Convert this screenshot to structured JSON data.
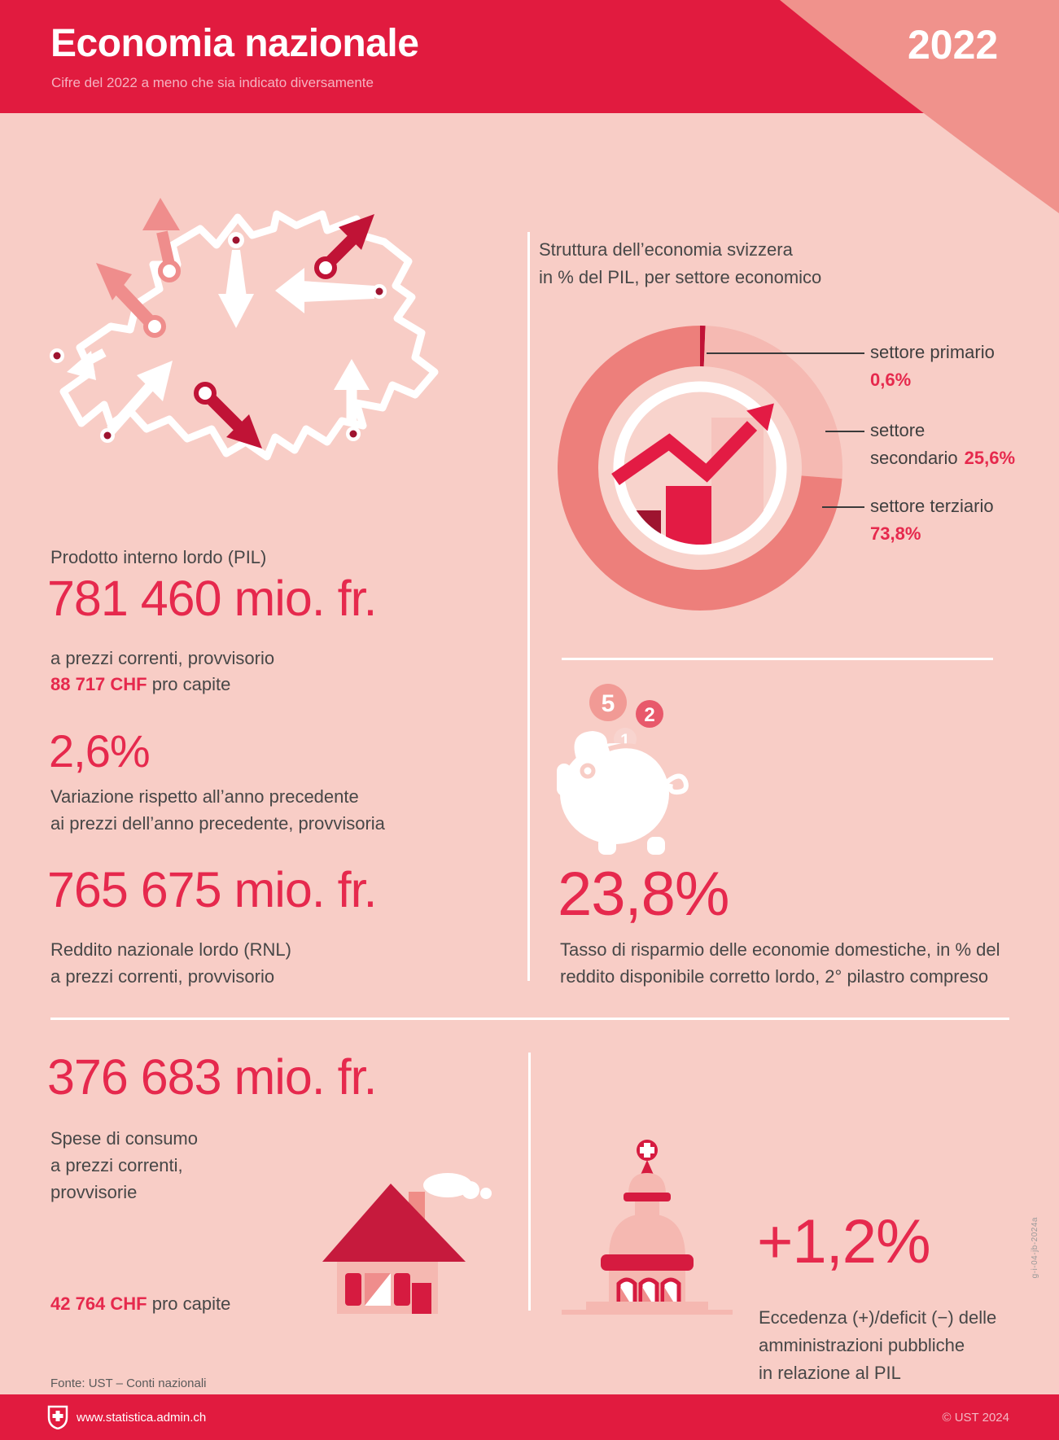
{
  "colors": {
    "header_red": "#e11b3f",
    "accent_red": "#e6294d",
    "dark_red": "#c01336",
    "rose": "#ed7f7b",
    "light_pink": "#f5b9b2",
    "salmon": "#f0928c",
    "background": "#f8cdc6",
    "text_dark": "#474747",
    "white": "#ffffff"
  },
  "header": {
    "title": "Economia nazionale",
    "subtitle": "Cifre del 2022 a meno che sia indicato diversamente",
    "year": "2022"
  },
  "structure": {
    "title_line1": "Struttura dell’economia svizzera",
    "title_line2": "in % del PIL, per settore economico"
  },
  "chart_data": {
    "type": "pie",
    "donut": true,
    "title": "Struttura dell’economia svizzera in % del PIL, per settore economico",
    "unit": "% del PIL",
    "legend_position": "right",
    "slices": [
      {
        "label": "settore primario",
        "value": 0.6,
        "display": "0,6%",
        "color": "#c01336"
      },
      {
        "label": "settore secondario",
        "label_line1": "settore",
        "label_line2": "secondario",
        "value": 25.6,
        "display": "25,6%",
        "color": "#f5b9b2"
      },
      {
        "label": "settore terziario",
        "value": 73.8,
        "display": "73,8%",
        "color": "#ed7f7b"
      }
    ]
  },
  "gdp": {
    "label": "Prodotto interno lordo (PIL)",
    "value": "781 460 mio. fr.",
    "note": "a prezzi correnti, provvisorio",
    "per_capita": "88 717 CHF",
    "per_capita_suffix": " pro capite"
  },
  "variation": {
    "value": "2,6%",
    "note_line1": "Variazione rispetto all’anno precedente",
    "note_line2": "ai prezzi dell’anno precedente, provvisoria"
  },
  "gni": {
    "value": "765 675 mio. fr.",
    "note_line1": "Reddito nazionale lordo (RNL)",
    "note_line2": "a prezzi correnti, provvisorio"
  },
  "savings": {
    "value": "23,8%",
    "note_line1": "Tasso di risparmio delle economie domestiche, in % del",
    "note_line2": "reddito disponibile corretto lordo, 2° pilastro compreso",
    "coins": [
      "5",
      "2",
      "1"
    ]
  },
  "consumption": {
    "value": "376 683 mio. fr.",
    "note_line1": "Spese di consumo",
    "note_line2": "a prezzi correnti,",
    "note_line3": "provvisorie",
    "per_capita": "42 764 CHF",
    "per_capita_suffix": " pro capite"
  },
  "public_finance": {
    "value": "+1,2%",
    "note_line1": "Eccedenza (+)/deficit (−) delle",
    "note_line2": "amministrazioni pubbliche",
    "note_line3": "in relazione al PIL"
  },
  "footer": {
    "source": "Fonte: UST – Conti nazionali",
    "website": "www.statistica.admin.ch",
    "copyright": "© UST 2024",
    "code": "g-i-04-jb-2024a"
  }
}
